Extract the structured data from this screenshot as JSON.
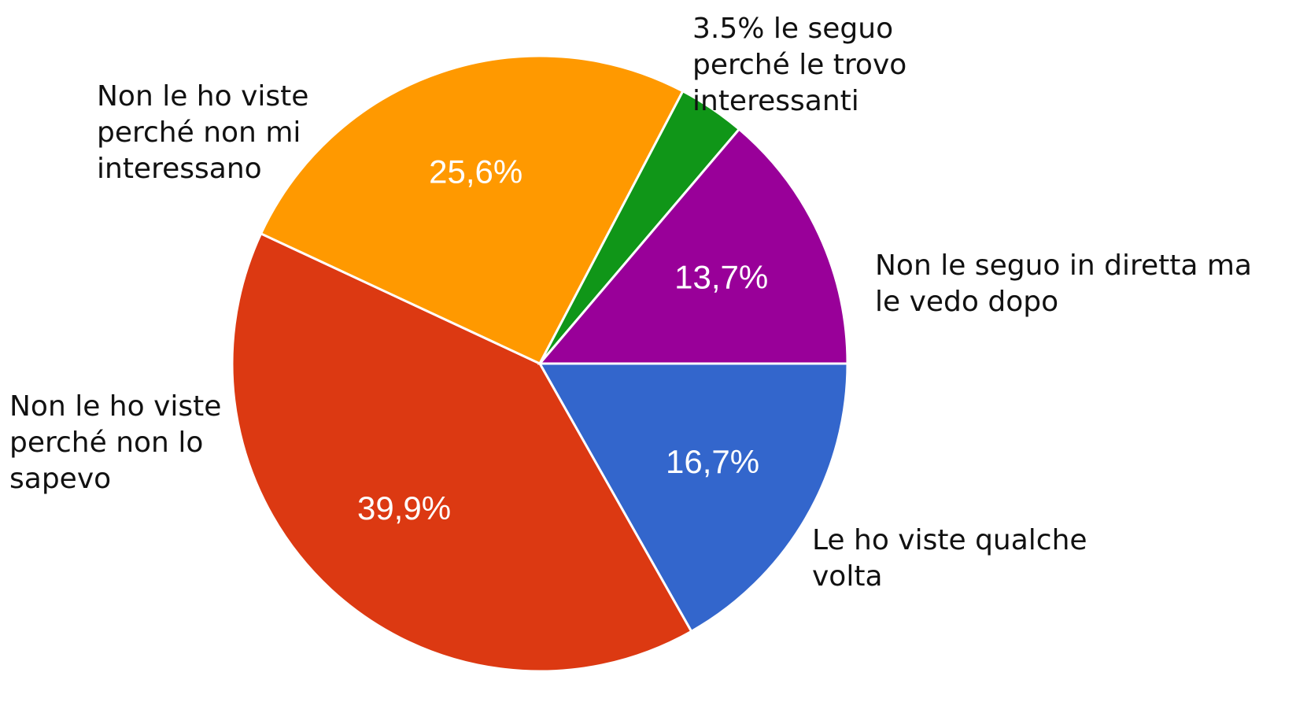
{
  "chart_data": {
    "type": "pie",
    "categories": [
      "Le ho viste qualche volta",
      "Non le ho viste perché non lo sapevo",
      "Non le ho viste perché non mi interessano",
      "3.5% le seguo perché le trovo interessanti",
      "Non le seguo in diretta ma le vedo dopo"
    ],
    "values": [
      16.7,
      39.9,
      25.6,
      3.5,
      13.7
    ],
    "value_labels": [
      "16,7%",
      "39,9%",
      "25,6%",
      null,
      "13,7%"
    ],
    "colors": [
      "#3366cc",
      "#dc3912",
      "#ff9900",
      "#109618",
      "#990099"
    ]
  }
}
